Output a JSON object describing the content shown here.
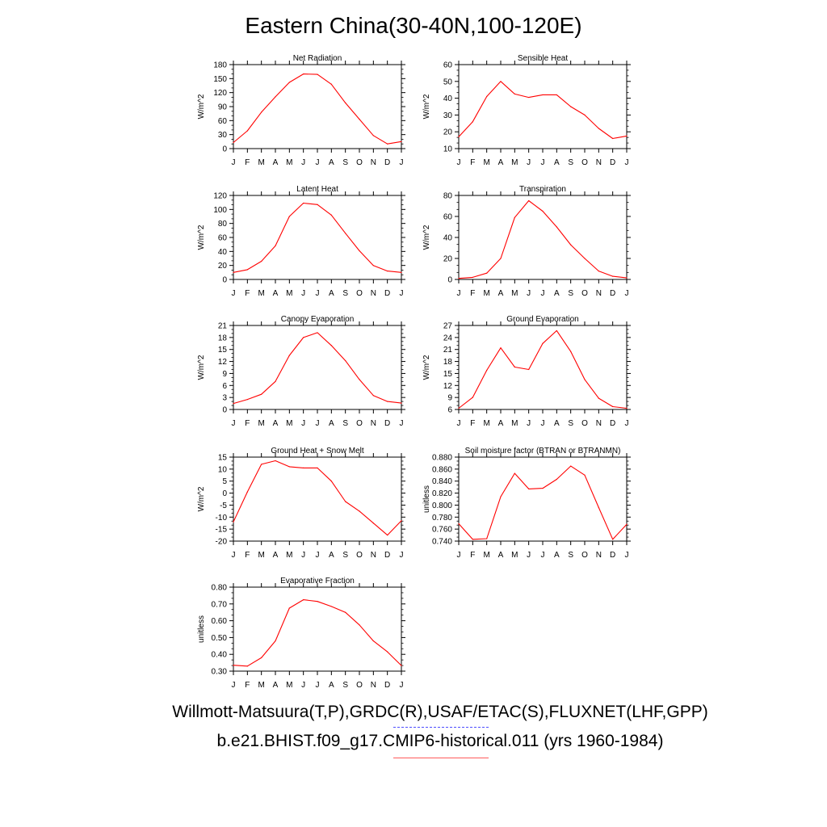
{
  "figure": {
    "title": "Eastern China(30-40N,100-120E)",
    "legend": {
      "obs_label": "Willmott-Matsuura(T,P),GRDC(R),USAF/ETAC(S),FLUXNET(LHF,GPP)",
      "model_label": "b.e21.BHIST.f09_g17.CMIP6-historical.011 (yrs 1960-1984)",
      "obs_color": "#4d4dff",
      "model_color": "#ff5a5a"
    },
    "line_color": "#ff0000"
  },
  "chart_data": [
    {
      "type": "line",
      "title": "Net Radiation",
      "ylabel": "W/m^2",
      "categories": [
        "J",
        "F",
        "M",
        "A",
        "M",
        "J",
        "J",
        "A",
        "S",
        "O",
        "N",
        "D",
        "J"
      ],
      "yticks": [
        "0",
        "30",
        "60",
        "90",
        "120",
        "150",
        "180"
      ],
      "ylim": [
        0,
        180
      ],
      "values": [
        13,
        38,
        78,
        111,
        142,
        160,
        159,
        138,
        98,
        63,
        28,
        10,
        15
      ]
    },
    {
      "type": "line",
      "title": "Sensible Heat",
      "ylabel": "W/m^2",
      "categories": [
        "J",
        "F",
        "M",
        "A",
        "M",
        "J",
        "J",
        "A",
        "S",
        "O",
        "N",
        "D",
        "J"
      ],
      "yticks": [
        "10",
        "20",
        "30",
        "40",
        "50",
        "60"
      ],
      "ylim": [
        10,
        60
      ],
      "values": [
        17,
        26,
        41,
        50,
        42.5,
        40.5,
        42,
        42,
        35,
        30,
        22,
        16,
        17.5
      ]
    },
    {
      "type": "line",
      "title": "Latent Heat",
      "ylabel": "W/m^2",
      "categories": [
        "J",
        "F",
        "M",
        "A",
        "M",
        "J",
        "J",
        "A",
        "S",
        "O",
        "N",
        "D",
        "J"
      ],
      "yticks": [
        "0",
        "20",
        "40",
        "60",
        "80",
        "100",
        "120"
      ],
      "ylim": [
        0,
        120
      ],
      "values": [
        10,
        14,
        26,
        48,
        90,
        109,
        107,
        92,
        66,
        41,
        20,
        12,
        10
      ]
    },
    {
      "type": "line",
      "title": "Transpiration",
      "ylabel": "W/m^2",
      "categories": [
        "J",
        "F",
        "M",
        "A",
        "M",
        "J",
        "J",
        "A",
        "S",
        "O",
        "N",
        "D",
        "J"
      ],
      "yticks": [
        "0",
        "20",
        "40",
        "60",
        "80"
      ],
      "ylim": [
        0,
        80
      ],
      "values": [
        1,
        2,
        6,
        20,
        59,
        75,
        65,
        50,
        33,
        20,
        8,
        3,
        1.5
      ]
    },
    {
      "type": "line",
      "title": "Canopy Evaporation",
      "ylabel": "W/m^2",
      "categories": [
        "J",
        "F",
        "M",
        "A",
        "M",
        "J",
        "J",
        "A",
        "S",
        "O",
        "N",
        "D",
        "J"
      ],
      "yticks": [
        "0",
        "3",
        "6",
        "9",
        "12",
        "15",
        "18",
        "21"
      ],
      "ylim": [
        0,
        21
      ],
      "values": [
        1.5,
        2.5,
        3.8,
        7,
        13.5,
        18,
        19.2,
        16,
        12.2,
        7.5,
        3.5,
        2,
        1.6
      ]
    },
    {
      "type": "line",
      "title": "Ground Evaporation",
      "ylabel": "W/m^2",
      "categories": [
        "J",
        "F",
        "M",
        "A",
        "M",
        "J",
        "J",
        "A",
        "S",
        "O",
        "N",
        "D",
        "J"
      ],
      "yticks": [
        "6",
        "9",
        "12",
        "15",
        "18",
        "21",
        "24",
        "27"
      ],
      "ylim": [
        6,
        27
      ],
      "values": [
        6.3,
        9,
        15.8,
        21.4,
        16.6,
        16,
        22.5,
        25.7,
        20.5,
        13.5,
        8.8,
        6.7,
        6.3
      ]
    },
    {
      "type": "line",
      "title": "Ground Heat + Snow Melt",
      "ylabel": "W/m^2",
      "categories": [
        "J",
        "F",
        "M",
        "A",
        "M",
        "J",
        "J",
        "A",
        "S",
        "O",
        "N",
        "D",
        "J"
      ],
      "yticks": [
        "-20",
        "-15",
        "-10",
        "-5",
        "0",
        "5",
        "10",
        "15"
      ],
      "ylim": [
        -20,
        15
      ],
      "values": [
        -12,
        0.5,
        12,
        13.5,
        11,
        10.5,
        10.5,
        5,
        -3.5,
        -7.5,
        -12.5,
        -17.5,
        -11.5
      ]
    },
    {
      "type": "line",
      "title": "Soil moisture factor (BTRAN or BTRANMN)",
      "ylabel": "unitless",
      "categories": [
        "J",
        "F",
        "M",
        "A",
        "M",
        "J",
        "J",
        "A",
        "S",
        "O",
        "N",
        "D",
        "J"
      ],
      "yticks": [
        "0.740",
        "0.760",
        "0.780",
        "0.800",
        "0.820",
        "0.840",
        "0.860",
        "0.880"
      ],
      "ylim": [
        0.74,
        0.88
      ],
      "values": [
        0.769,
        0.743,
        0.744,
        0.814,
        0.853,
        0.827,
        0.828,
        0.843,
        0.865,
        0.85,
        0.796,
        0.743,
        0.768
      ]
    },
    {
      "type": "line",
      "title": "Evaporative Fraction",
      "ylabel": "unitless",
      "categories": [
        "J",
        "F",
        "M",
        "A",
        "M",
        "J",
        "J",
        "A",
        "S",
        "O",
        "N",
        "D",
        "J"
      ],
      "yticks": [
        "0.30",
        "0.40",
        "0.50",
        "0.60",
        "0.70",
        "0.80"
      ],
      "ylim": [
        0.3,
        0.8
      ],
      "values": [
        0.335,
        0.33,
        0.38,
        0.48,
        0.675,
        0.725,
        0.715,
        0.685,
        0.65,
        0.575,
        0.48,
        0.415,
        0.333
      ]
    }
  ]
}
